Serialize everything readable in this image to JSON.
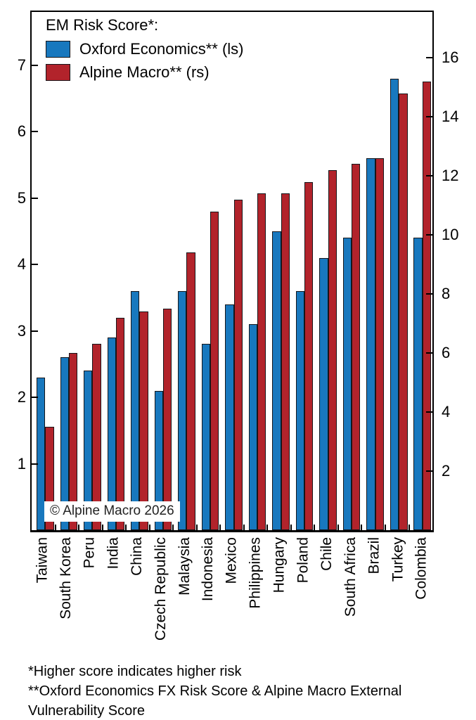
{
  "chart_data": {
    "type": "bar",
    "legend_title": "EM Risk Score*:",
    "legend_position": "top-left",
    "grid": false,
    "categories": [
      "Taiwan",
      "South Korea",
      "Peru",
      "India",
      "China",
      "Czech Republic",
      "Malaysia",
      "Indonesia",
      "Mexico",
      "Philippines",
      "Hungary",
      "Poland",
      "Chile",
      "South Africa",
      "Brazil",
      "Turkey",
      "Colombia"
    ],
    "series": [
      {
        "name": "Oxford Economics** (ls)",
        "axis": "left",
        "color": "#1878BE",
        "values": [
          2.3,
          2.6,
          2.4,
          2.9,
          3.6,
          2.1,
          3.6,
          2.8,
          3.4,
          3.1,
          4.5,
          3.6,
          4.1,
          4.4,
          5.6,
          6.8,
          4.4
        ]
      },
      {
        "name": "Alpine Macro** (rs)",
        "axis": "right",
        "color": "#B2232B",
        "values": [
          3.5,
          6.0,
          6.3,
          7.2,
          7.4,
          7.5,
          9.4,
          10.8,
          11.2,
          11.4,
          11.4,
          11.8,
          12.2,
          12.4,
          12.6,
          14.8,
          15.2
        ]
      }
    ],
    "left_axis": {
      "ticks": [
        1,
        2,
        3,
        4,
        5,
        6,
        7
      ],
      "min": 0,
      "max": 7.8
    },
    "right_axis": {
      "ticks": [
        2,
        4,
        6,
        8,
        10,
        12,
        14,
        16
      ],
      "min": 0,
      "max": 17.55
    },
    "watermark": "© Alpine Macro 2026",
    "footnote_lines": [
      "*Higher score indicates higher risk",
      "**Oxford Economics FX Risk Score & Alpine Macro External",
      "Vulnerability Score"
    ]
  }
}
